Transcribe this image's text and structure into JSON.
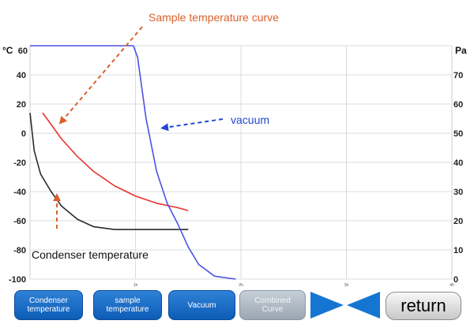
{
  "annotations": {
    "sample_curve": "Sample temperature curve",
    "vacuum": "vacuum",
    "condenser": "Condenser temperature"
  },
  "buttons": {
    "condenser": "Condenser\ntemperature",
    "sample": "sample\ntemperature",
    "vacuum": "Vacuum",
    "combined": "Combined\nCurve",
    "return": "return"
  },
  "colors": {
    "sample_curve": "#e8322c",
    "vacuum_curve": "#4b52e6",
    "condenser_curve": "#2b2b2b",
    "annotation_orange": "#d9612b",
    "annotation_blue": "#2046d4",
    "button_blue": "#1a6fc8",
    "grid": "#d9dce0"
  },
  "icons": {
    "prev": "triangle-left-icon",
    "next": "triangle-right-icon"
  },
  "chart_data": {
    "type": "line",
    "y_left_unit": "°C",
    "y_right_unit": "Pa",
    "y_left_ticks": [
      "60",
      "40",
      "20",
      "0",
      "-20",
      "-40",
      "-60",
      "-80",
      "-100"
    ],
    "y_right_ticks": [
      "70",
      "60",
      "50",
      "40",
      "30",
      "20",
      "10",
      "0"
    ],
    "x_ticks": [
      "1h",
      "2h",
      "3h",
      "4h"
    ],
    "ylim_left": [
      -100,
      60
    ],
    "ylim_right": [
      0,
      80
    ],
    "xlim_hours": [
      0,
      4
    ],
    "grid": true,
    "series": [
      {
        "key": "condenser",
        "axis": "left",
        "points": [
          [
            0.0,
            14
          ],
          [
            0.04,
            -12
          ],
          [
            0.1,
            -28
          ],
          [
            0.2,
            -40
          ],
          [
            0.3,
            -50
          ],
          [
            0.45,
            -59
          ],
          [
            0.6,
            -64
          ],
          [
            0.8,
            -66
          ],
          [
            1.0,
            -66
          ],
          [
            1.2,
            -66
          ],
          [
            1.5,
            -66
          ]
        ]
      },
      {
        "key": "sample",
        "axis": "left",
        "points": [
          [
            0.12,
            14
          ],
          [
            0.2,
            6
          ],
          [
            0.3,
            -4
          ],
          [
            0.45,
            -16
          ],
          [
            0.6,
            -26
          ],
          [
            0.8,
            -36
          ],
          [
            1.0,
            -43
          ],
          [
            1.2,
            -48
          ],
          [
            1.4,
            -51
          ],
          [
            1.5,
            -53
          ]
        ]
      },
      {
        "key": "vacuum",
        "axis": "right",
        "points": [
          [
            0.0,
            80
          ],
          [
            0.98,
            80
          ],
          [
            1.02,
            76
          ],
          [
            1.1,
            55
          ],
          [
            1.2,
            37
          ],
          [
            1.3,
            26
          ],
          [
            1.4,
            19
          ],
          [
            1.5,
            11
          ],
          [
            1.6,
            5
          ],
          [
            1.75,
            1
          ],
          [
            1.95,
            0
          ]
        ]
      }
    ]
  }
}
